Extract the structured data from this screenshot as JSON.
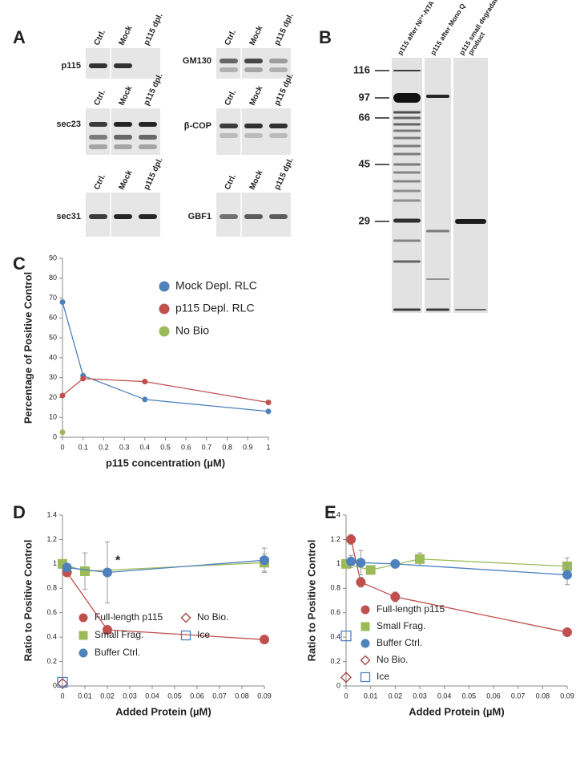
{
  "panel_a": {
    "panel": "A",
    "lanes": [
      "Ctrl.",
      "Mock",
      "p115 dpl."
    ],
    "blots": [
      "p115",
      "GM130",
      "sec23",
      "β-COP",
      "sec31",
      "GBF1"
    ]
  },
  "panel_b": {
    "panel": "B",
    "lanes": [
      [
        "p115 after Ni²⁺-NTA"
      ],
      [
        "p115 after Mono Q"
      ],
      [
        "p115 small degradation",
        "product"
      ]
    ],
    "markers": [
      116,
      97,
      66,
      45,
      29
    ]
  },
  "chart_data": [
    {
      "type": "line",
      "panel": "C",
      "xlabel": "p115 concentration (µM)",
      "ylabel": "Percentage of Positive Control",
      "xlim": [
        0,
        1
      ],
      "xticks": [
        0,
        0.1,
        0.2,
        0.3,
        0.4,
        0.5,
        0.6,
        0.7,
        0.8,
        0.9,
        1
      ],
      "ylim": [
        0,
        90
      ],
      "yticks": [
        0,
        10,
        20,
        30,
        40,
        50,
        60,
        70,
        80,
        90
      ],
      "series": [
        {
          "name": "Mock Depl. RLC",
          "color": "#4f81bd",
          "marker": "circle",
          "x": [
            0,
            0.1,
            0.4,
            1
          ],
          "values": [
            68,
            31,
            19,
            13
          ]
        },
        {
          "name": "p115 Depl. RLC",
          "color": "#c0504d",
          "marker": "circle",
          "x": [
            0,
            0.1,
            0.4,
            1
          ],
          "values": [
            21,
            29.5,
            28,
            17.5
          ]
        },
        {
          "name": "No Bio",
          "color": "#9bbb59",
          "marker": "circle",
          "x": [
            0
          ],
          "values": [
            2.5
          ]
        }
      ]
    },
    {
      "type": "line",
      "panel": "D",
      "xlabel": "Added Protein (µM)",
      "ylabel": "Ratio to Positive Control",
      "annotation": "*",
      "xlim": [
        0,
        0.09
      ],
      "xticks": [
        0,
        0.01,
        0.02,
        0.03,
        0.04,
        0.05,
        0.06,
        0.07,
        0.08,
        0.09
      ],
      "ylim": [
        0,
        1.4
      ],
      "yticks": [
        0,
        0.2,
        0.4,
        0.6,
        0.8,
        1,
        1.2,
        1.4
      ],
      "series": [
        {
          "name": "Full-length p115",
          "color": "#c0504d",
          "marker": "circle",
          "x": [
            0,
            0.002,
            0.02,
            0.09
          ],
          "values": [
            1,
            0.93,
            0.46,
            0.38
          ]
        },
        {
          "name": "Small Frag.",
          "color": "#9bbb59",
          "marker": "square",
          "x": [
            0,
            0.01,
            0.09
          ],
          "values": [
            1,
            0.94,
            1.01
          ],
          "errors": [
            0.03,
            0.15,
            0.07
          ]
        },
        {
          "name": "Buffer Ctrl.",
          "color": "#4f81bd",
          "marker": "circle",
          "x": [
            0.002,
            0.02,
            0.09
          ],
          "values": [
            0.97,
            0.93,
            1.03
          ],
          "errors": [
            0.03,
            0.25,
            0.1
          ]
        },
        {
          "name": "No Bio.",
          "color": "#a0403d",
          "marker": "open-diamond",
          "x": [
            0
          ],
          "values": [
            0.02
          ]
        },
        {
          "name": "Ice",
          "color": "#4f81bd",
          "marker": "open-square",
          "x": [
            0
          ],
          "values": [
            0.03
          ]
        }
      ]
    },
    {
      "type": "line",
      "panel": "E",
      "xlabel": "Added Protein (µM)",
      "ylabel": "Ratio to Positive Control",
      "xlim": [
        0,
        0.09
      ],
      "xticks": [
        0,
        0.01,
        0.02,
        0.03,
        0.04,
        0.05,
        0.06,
        0.07,
        0.08,
        0.09
      ],
      "ylim": [
        0,
        1.4
      ],
      "yticks": [
        0,
        0.2,
        0.4,
        0.6,
        0.8,
        1,
        1.2,
        1.4
      ],
      "series": [
        {
          "name": "Full-length p115",
          "color": "#c0504d",
          "marker": "circle",
          "x": [
            0.002,
            0.006,
            0.02,
            0.09
          ],
          "values": [
            1.2,
            0.85,
            0.73,
            0.44
          ],
          "errors": [
            0.04,
            0.04,
            0.04,
            0.02
          ]
        },
        {
          "name": "Small Frag.",
          "color": "#9bbb59",
          "marker": "square",
          "x": [
            0,
            0.01,
            0.03,
            0.09
          ],
          "values": [
            1,
            0.95,
            1.04,
            0.98
          ],
          "errors": [
            0.03,
            0.03,
            0.05,
            0.07
          ]
        },
        {
          "name": "Buffer Ctrl.",
          "color": "#4f81bd",
          "marker": "circle",
          "x": [
            0.002,
            0.006,
            0.02,
            0.09
          ],
          "values": [
            1.02,
            1.01,
            1,
            0.91
          ],
          "errors": [
            0.05,
            0.1,
            0.03,
            0.08
          ]
        },
        {
          "name": "No Bio.",
          "color": "#a0403d",
          "marker": "open-diamond",
          "x": [
            0
          ],
          "values": [
            0.07
          ]
        },
        {
          "name": "Ice",
          "color": "#4f81bd",
          "marker": "open-square",
          "x": [
            0
          ],
          "values": [
            0.41
          ]
        }
      ]
    }
  ]
}
